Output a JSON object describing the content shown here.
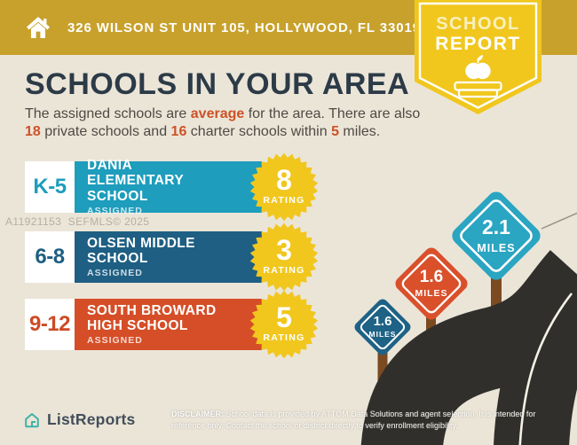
{
  "header": {
    "address": "326 WILSON ST UNIT 105, HOLLYWOOD, FL 33019"
  },
  "badge": {
    "line1": "SCHOOL",
    "line2": "REPORT"
  },
  "main": {
    "title": "SCHOOLS IN YOUR AREA",
    "subtitle": {
      "t1": "The assigned schools are ",
      "hl1": "average",
      "t2": " for the area. There are also ",
      "hl2": "18",
      "t3": " private schools and ",
      "hl3": "16",
      "t4": " charter schools within ",
      "hl4": "5",
      "t5": " miles."
    }
  },
  "schools": [
    {
      "grade": "K-5",
      "name": "DANIA ELEMENTARY SCHOOL",
      "status": "ASSIGNED",
      "rating": "8",
      "rating_label": "RATING",
      "color": "#1E9DBC"
    },
    {
      "grade": "6-8",
      "name": "OLSEN MIDDLE SCHOOL",
      "status": "ASSIGNED",
      "rating": "3",
      "rating_label": "RATING",
      "color": "#1E5F83"
    },
    {
      "grade": "9-12",
      "name": "SOUTH BROWARD HIGH SCHOOL",
      "status": "ASSIGNED",
      "rating": "5",
      "rating_label": "RATING",
      "color": "#D54E27"
    }
  ],
  "signs": [
    {
      "distance": "2.1",
      "unit": "MILES",
      "color": "#2AA5C2"
    },
    {
      "distance": "1.6",
      "unit": "MILES",
      "color": "#D9502B"
    },
    {
      "distance": "1.6",
      "unit": "MILES",
      "color": "#1E6285"
    }
  ],
  "watermark": "A11921153  SEFMLS© 2025",
  "footer": {
    "brand": "ListReports",
    "disclaimer_label": "DISCLAIMER:",
    "disclaimer_text": " School data is provided by ATTOM Data Solutions and agent selection. It is intended for reference only. Contact the school or district directly to verify enrollment eligibility."
  },
  "palette": {
    "header_gold": "#C8A12C",
    "badge_yellow": "#F1C71E",
    "background_beige": "#EBE5D8",
    "accent_orange": "#CD5227",
    "teal": "#1E9DBC",
    "navy": "#1E5F83",
    "orange": "#D54E27",
    "road": "#312F2B",
    "post_brown": "#7B4A21",
    "brand_teal": "#3FB2A7"
  }
}
